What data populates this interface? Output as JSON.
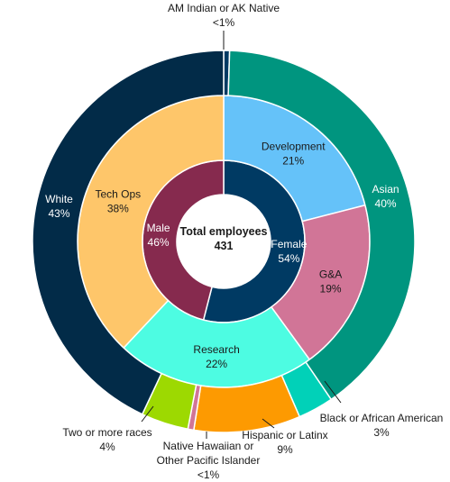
{
  "chart_data": {
    "type": "pie",
    "center_label": {
      "title": "Total employees",
      "value": "431"
    },
    "rings": [
      {
        "name": "gender",
        "slices": [
          {
            "name": "Female",
            "value": 54,
            "label_value": "54%",
            "color": "#003a63"
          },
          {
            "name": "Male",
            "value": 46,
            "label_value": "46%",
            "color": "#862a4e"
          }
        ]
      },
      {
        "name": "department",
        "slices": [
          {
            "name": "Development",
            "value": 21,
            "label_value": "21%",
            "color": "#65c2f9"
          },
          {
            "name": "G&A",
            "value": 19,
            "label_value": "19%",
            "color": "#d17597"
          },
          {
            "name": "Research",
            "value": 22,
            "label_value": "22%",
            "color": "#4dfce2"
          },
          {
            "name": "Tech Ops",
            "value": 38,
            "label_value": "38%",
            "color": "#fec66a"
          }
        ]
      },
      {
        "name": "race",
        "slices": [
          {
            "name": "AM Indian or AK Native",
            "value": 0.5,
            "label_value": "<1%",
            "color": "#003a63"
          },
          {
            "name": "Asian",
            "value": 40,
            "label_value": "40%",
            "color": "#00957f"
          },
          {
            "name": "Black or African American",
            "value": 3,
            "label_value": "3%",
            "color": "#01d1b8"
          },
          {
            "name": "Hispanic or Latinx",
            "value": 9,
            "label_value": "9%",
            "color": "#fd9a01"
          },
          {
            "name": "Native Hawaiian or Other Pacific Islander",
            "value": 0.5,
            "label_value": "<1%",
            "color": "#d17597"
          },
          {
            "name": "Two or more races",
            "value": 4,
            "label_value": "4%",
            "color": "#9dd901"
          },
          {
            "name": "White",
            "value": 43,
            "label_value": "43%",
            "color": "#022b48"
          }
        ]
      }
    ]
  }
}
